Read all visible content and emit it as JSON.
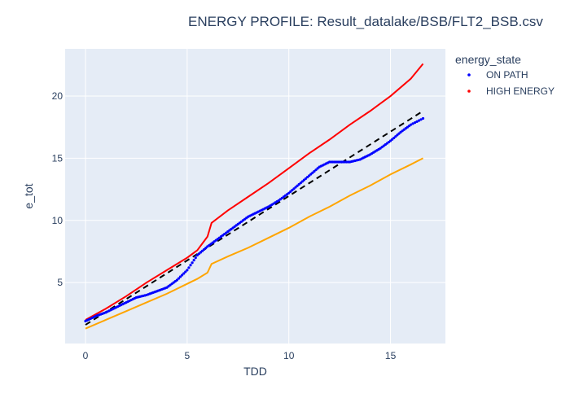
{
  "chart_data": {
    "type": "line",
    "title": "ENERGY PROFILE: Result_datalake/BSB/FLT2_BSB.csv",
    "xlabel": "TDD",
    "ylabel": "e_tot",
    "xlim": [
      -1,
      17.7
    ],
    "ylim": [
      0.1,
      23.8
    ],
    "x_ticks": [
      0,
      5,
      10,
      15
    ],
    "y_ticks": [
      5,
      10,
      15,
      20
    ],
    "grid": true,
    "legend_title": "energy_state",
    "legend_position": "top-right",
    "series": [
      {
        "name": "ON PATH",
        "marker": "dots",
        "color": "#0000ff",
        "x": [
          0,
          0.5,
          1,
          1.5,
          2,
          2.5,
          3,
          3.5,
          4,
          4.5,
          5,
          5.5,
          6,
          6.5,
          7,
          7.5,
          8,
          8.5,
          9,
          9.5,
          10,
          10.5,
          11,
          11.5,
          12,
          12.5,
          13,
          13.5,
          14,
          14.5,
          15,
          15.5,
          16,
          16.6
        ],
        "y": [
          1.9,
          2.3,
          2.6,
          3.0,
          3.4,
          3.8,
          4.0,
          4.3,
          4.6,
          5.2,
          6.0,
          7.2,
          7.9,
          8.5,
          9.1,
          9.7,
          10.3,
          10.7,
          11.1,
          11.6,
          12.2,
          12.9,
          13.6,
          14.3,
          14.7,
          14.7,
          14.7,
          14.9,
          15.3,
          15.8,
          16.4,
          17.1,
          17.7,
          18.2
        ]
      },
      {
        "name": "HIGH ENERGY",
        "marker": "line",
        "color": "#ff0000",
        "x": [
          0,
          1,
          2,
          3,
          4,
          5,
          5.5,
          6,
          6.2,
          7,
          8,
          9,
          10,
          11,
          12,
          13,
          14,
          15,
          16,
          16.6
        ],
        "y": [
          2.0,
          2.9,
          3.9,
          5.0,
          6.0,
          7.0,
          7.6,
          8.7,
          9.8,
          10.8,
          11.9,
          13.0,
          14.2,
          15.4,
          16.5,
          17.7,
          18.8,
          20.0,
          21.4,
          22.6
        ]
      },
      {
        "name": "",
        "marker": "line",
        "color": "#ffa500",
        "x": [
          0,
          1,
          2,
          3,
          4,
          5,
          5.5,
          6,
          6.2,
          7,
          8,
          9,
          10,
          11,
          12,
          13,
          14,
          15,
          16,
          16.6
        ],
        "y": [
          1.3,
          2.0,
          2.7,
          3.4,
          4.1,
          4.9,
          5.3,
          5.8,
          6.5,
          7.1,
          7.8,
          8.6,
          9.4,
          10.3,
          11.1,
          12.0,
          12.8,
          13.7,
          14.5,
          15.0
        ]
      },
      {
        "name": "",
        "marker": "dash",
        "color": "#000000",
        "x": [
          0,
          16.6
        ],
        "y": [
          1.6,
          18.8
        ]
      }
    ]
  }
}
